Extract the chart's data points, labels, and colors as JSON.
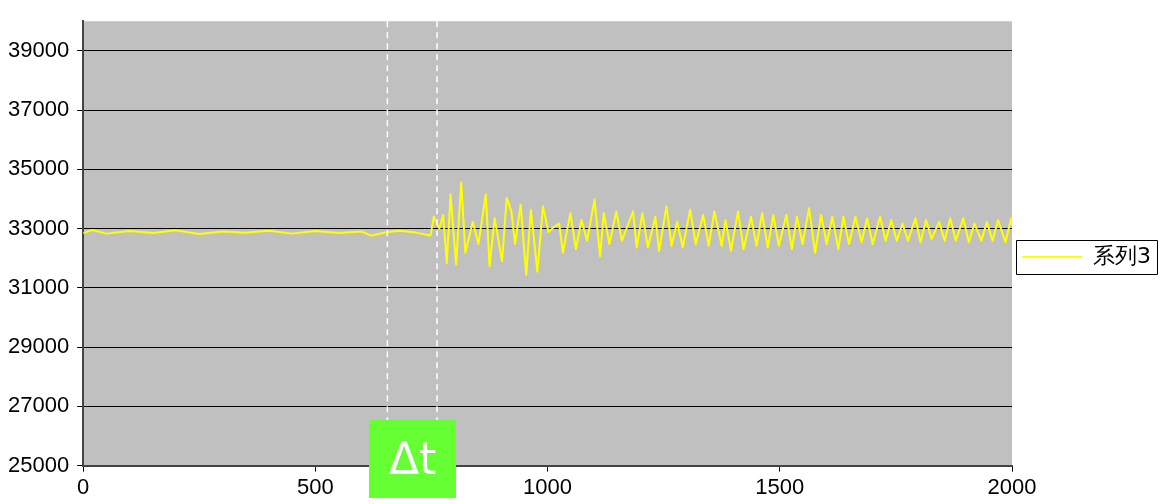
{
  "chart_data": {
    "type": "line",
    "x": [
      0,
      20,
      50,
      100,
      150,
      200,
      250,
      300,
      350,
      400,
      450,
      500,
      550,
      600,
      620,
      650,
      680,
      712,
      748,
      755,
      767,
      775,
      783,
      791,
      803,
      814,
      823,
      839,
      851,
      867,
      875,
      886,
      902,
      912,
      922,
      930,
      942,
      954,
      964,
      978,
      990,
      1002,
      1014,
      1025,
      1033,
      1049,
      1061,
      1073,
      1085,
      1101,
      1113,
      1121,
      1133,
      1148,
      1160,
      1184,
      1192,
      1204,
      1216,
      1232,
      1240,
      1256,
      1267,
      1279,
      1291,
      1307,
      1319,
      1335,
      1347,
      1359,
      1375,
      1383,
      1395,
      1410,
      1422,
      1438,
      1450,
      1462,
      1474,
      1486,
      1498,
      1514,
      1526,
      1537,
      1549,
      1563,
      1576,
      1589,
      1601,
      1613,
      1626,
      1637,
      1649,
      1663,
      1676,
      1688,
      1700,
      1716,
      1728,
      1740,
      1752,
      1764,
      1776,
      1792,
      1803,
      1815,
      1827,
      1843,
      1855,
      1867,
      1879,
      1895,
      1907,
      1919,
      1934,
      1946,
      1958,
      1970,
      1986,
      1998,
      2000
    ],
    "series": [
      {
        "name": "系列3",
        "color": "#ffff00",
        "values": [
          32850,
          32950,
          32830,
          32920,
          32850,
          32940,
          32820,
          32900,
          32860,
          32930,
          32830,
          32920,
          32850,
          32900,
          32760,
          32870,
          32930,
          32880,
          32770,
          33400,
          33000,
          33460,
          31840,
          34160,
          31790,
          34560,
          32190,
          33230,
          32480,
          34160,
          31730,
          33350,
          31900,
          34040,
          33580,
          32480,
          33810,
          31440,
          33640,
          31550,
          33750,
          32880,
          33060,
          33170,
          32190,
          33520,
          32310,
          33290,
          32590,
          33980,
          32070,
          33520,
          32480,
          33580,
          32590,
          33580,
          32360,
          33520,
          32360,
          33400,
          32250,
          33750,
          32420,
          33230,
          32360,
          33640,
          32480,
          33460,
          32420,
          33580,
          32420,
          33290,
          32250,
          33580,
          32310,
          33400,
          32420,
          33520,
          32360,
          33460,
          32420,
          33460,
          32310,
          33400,
          32480,
          33690,
          32190,
          33460,
          32480,
          33400,
          32310,
          33400,
          32480,
          33400,
          32540,
          33350,
          32480,
          33400,
          32590,
          33290,
          32590,
          33170,
          32590,
          33350,
          32540,
          33290,
          32650,
          33230,
          32590,
          33350,
          32590,
          33350,
          32540,
          33170,
          32590,
          33230,
          32590,
          33290,
          32540,
          33350,
          33100
        ]
      }
    ],
    "xlim": [
      0,
      2000
    ],
    "xticks": [
      0,
      500,
      1000,
      1500,
      2000
    ],
    "ylim": [
      25000,
      40000
    ],
    "yticks": [
      25000,
      27000,
      29000,
      31000,
      33000,
      35000,
      37000,
      39000
    ],
    "grid": "y",
    "legend": "right",
    "marker": "none",
    "line_style": "solid",
    "ref_lines": [
      {
        "axis": "x",
        "value": 655,
        "color": "#ffffff",
        "line_style": "dashed"
      },
      {
        "axis": "x",
        "value": 762,
        "color": "#ffffff",
        "line_style": "dashed"
      }
    ],
    "annotations": [
      "Δt"
    ]
  }
}
